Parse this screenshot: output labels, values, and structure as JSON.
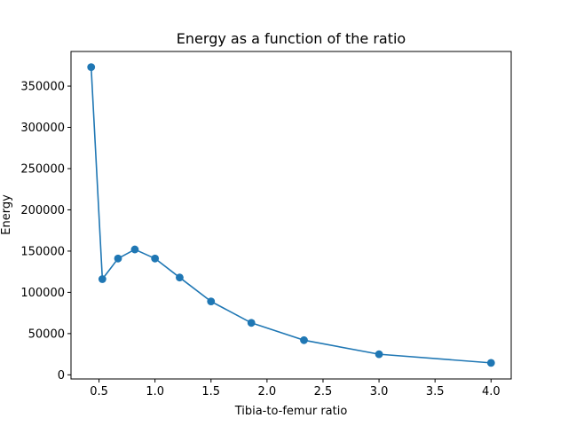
{
  "chart_data": {
    "type": "line",
    "title": "Energy as a function of the ratio",
    "xlabel": "Tibia-to-femur ratio",
    "ylabel": "Energy",
    "xlim": [
      0.25,
      4.18
    ],
    "ylim": [
      -5000,
      392000
    ],
    "xticks": [
      0.5,
      1.0,
      1.5,
      2.0,
      2.5,
      3.0,
      3.5,
      4.0
    ],
    "xtick_labels": [
      "0.5",
      "1.0",
      "1.5",
      "2.0",
      "2.5",
      "3.0",
      "3.5",
      "4.0"
    ],
    "yticks": [
      0,
      50000,
      100000,
      150000,
      200000,
      250000,
      300000,
      350000
    ],
    "ytick_labels": [
      "0",
      "50000",
      "100000",
      "150000",
      "200000",
      "250000",
      "300000",
      "350000"
    ],
    "grid": false,
    "legend": false,
    "color": "#1f77b4",
    "marker": "circle",
    "series": [
      {
        "x": [
          0.43,
          0.53,
          0.67,
          0.82,
          1.0,
          1.22,
          1.5,
          1.86,
          2.33,
          3.0,
          4.0
        ],
        "y": [
          373000,
          116000,
          141000,
          152000,
          141000,
          118000,
          89000,
          63000,
          42000,
          25000,
          14500
        ]
      }
    ]
  }
}
